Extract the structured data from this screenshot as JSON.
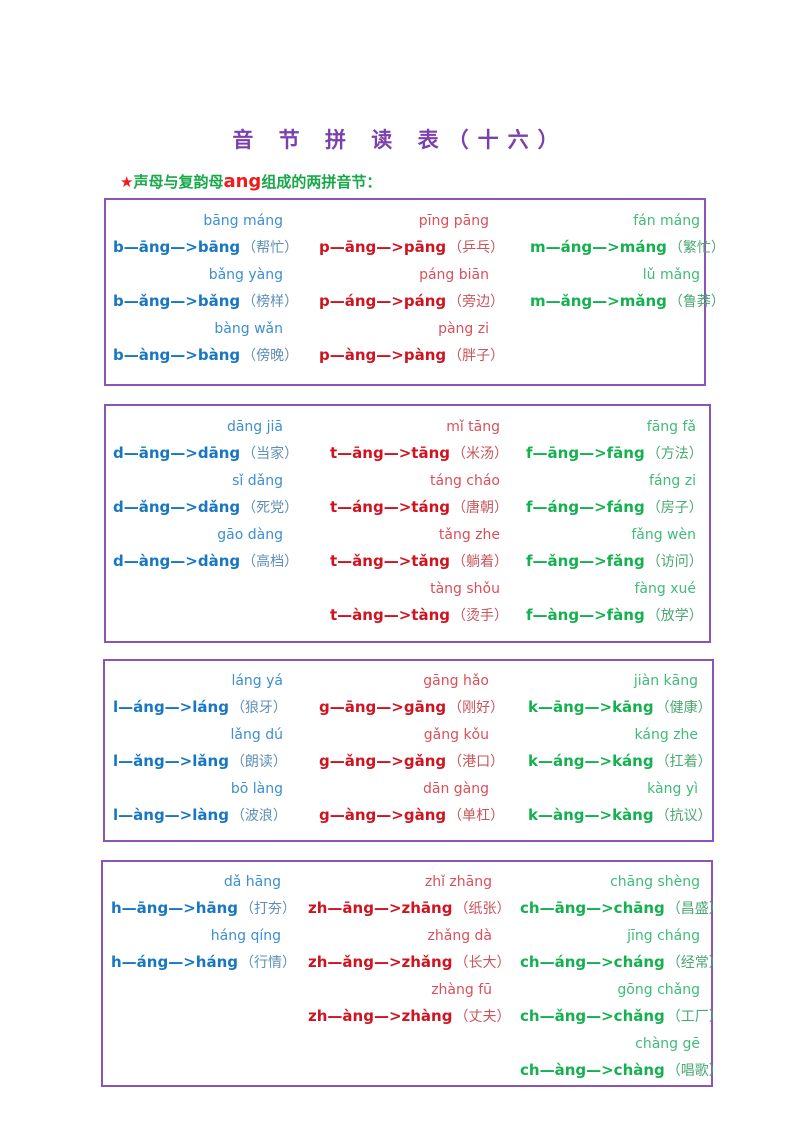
{
  "title": "音 节 拼 读 表（十六）",
  "subtitle": {
    "star": "★",
    "before": "声母与复韵母",
    "highlight": "ang",
    "after": "组成的两拼音节："
  },
  "colors": {
    "title": "#7b3fae",
    "border": "#8a55b5",
    "blue": "#1877c2",
    "red": "#cf1420",
    "green": "#15b050"
  },
  "boxes": [
    {
      "columns": [
        {
          "color": "blue",
          "entries": [
            {
              "pinyin": "bāng máng",
              "formula": "b—āng—>bāng",
              "word": "（帮忙）"
            },
            {
              "pinyin": "bǎng yàng",
              "formula": "b—ǎng—>bǎng",
              "word": "（榜样）"
            },
            {
              "pinyin": "bàng wǎn",
              "formula": "b—àng—>bàng",
              "word": "（傍晚）"
            }
          ]
        },
        {
          "color": "red",
          "entries": [
            {
              "pinyin": "pīng pāng",
              "formula": "p—āng—>pāng",
              "word": "（乒乓）"
            },
            {
              "pinyin": "páng biān",
              "formula": "p—áng—>páng",
              "word": "（旁边）"
            },
            {
              "pinyin": "pàng zi",
              "formula": "p—àng—>pàng",
              "word": "（胖子）"
            }
          ]
        },
        {
          "color": "green",
          "entries": [
            {
              "pinyin": "fán máng",
              "formula": "m—áng—>máng",
              "word": "（繁忙）"
            },
            {
              "pinyin": "lǔ mǎng",
              "formula": "m—ǎng—>mǎng",
              "word": "（鲁莽）"
            }
          ]
        }
      ]
    },
    {
      "columns": [
        {
          "color": "blue",
          "entries": [
            {
              "pinyin": "dāng jiā",
              "formula": "d—āng—>dāng",
              "word": "（当家）"
            },
            {
              "pinyin": "sǐ dǎng",
              "formula": "d—ǎng—>dǎng",
              "word": "（死党）"
            },
            {
              "pinyin": "gāo dàng",
              "formula": "d—àng—>dàng",
              "word": "（高档）"
            }
          ]
        },
        {
          "color": "red",
          "entries": [
            {
              "pinyin": "mǐ tāng",
              "formula": "t—āng—>tāng",
              "word": "（米汤）"
            },
            {
              "pinyin": "táng cháo",
              "formula": "t—áng—>táng",
              "word": "（唐朝）"
            },
            {
              "pinyin": "tǎng zhe",
              "formula": "t—ǎng—>tǎng",
              "word": "（躺着）"
            },
            {
              "pinyin": "tàng shǒu",
              "formula": "t—àng—>tàng",
              "word": "（烫手）"
            }
          ]
        },
        {
          "color": "green",
          "entries": [
            {
              "pinyin": "fāng fǎ",
              "formula": "f—āng—>fāng",
              "word": "（方法）"
            },
            {
              "pinyin": "fáng zi",
              "formula": "f—áng—>fáng",
              "word": "（房子）"
            },
            {
              "pinyin": "fǎng wèn",
              "formula": "f—ǎng—>fǎng",
              "word": "（访问）"
            },
            {
              "pinyin": "fàng xué",
              "formula": "f—àng—>fàng",
              "word": "（放学）"
            }
          ]
        }
      ]
    },
    {
      "columns": [
        {
          "color": "blue",
          "entries": [
            {
              "pinyin": "láng yá",
              "formula": "l—áng—>láng",
              "word": "（狼牙）"
            },
            {
              "pinyin": "lǎng dú",
              "formula": "l—ǎng—>lǎng",
              "word": "（朗读）"
            },
            {
              "pinyin": "bō làng",
              "formula": "l—àng—>làng",
              "word": "（波浪）"
            }
          ]
        },
        {
          "color": "red",
          "entries": [
            {
              "pinyin": "gāng hǎo",
              "formula": "g—āng—>gāng",
              "word": "（刚好）"
            },
            {
              "pinyin": "gǎng kǒu",
              "formula": "g—ǎng—>gǎng",
              "word": "（港口）"
            },
            {
              "pinyin": "dān gàng",
              "formula": "g—àng—>gàng",
              "word": "（单杠）"
            }
          ]
        },
        {
          "color": "green",
          "entries": [
            {
              "pinyin": "jiàn kāng",
              "formula": "k—āng—>kāng",
              "word": "（健康）"
            },
            {
              "pinyin": "káng zhe",
              "formula": "k—áng—>káng",
              "word": "（扛着）"
            },
            {
              "pinyin": "kàng yì",
              "formula": "k—àng—>kàng",
              "word": "（抗议）"
            }
          ]
        }
      ]
    },
    {
      "columns": [
        {
          "color": "blue",
          "entries": [
            {
              "pinyin": "dǎ hāng",
              "formula": "h—āng—>hāng",
              "word": "（打夯）"
            },
            {
              "pinyin": "háng qíng",
              "formula": "h—áng—>háng",
              "word": "（行情）"
            }
          ]
        },
        {
          "color": "red",
          "entries": [
            {
              "pinyin": "zhǐ zhāng",
              "formula": "zh—āng—>zhāng",
              "word": "（纸张）"
            },
            {
              "pinyin": "zhǎng dà",
              "formula": "zh—ǎng—>zhǎng",
              "word": "（长大）"
            },
            {
              "pinyin": "zhàng fū",
              "formula": "zh—àng—>zhàng",
              "word": "（丈夫）"
            }
          ]
        },
        {
          "color": "green",
          "entries": [
            {
              "pinyin": "chāng shèng",
              "formula": "ch—āng—>chāng",
              "word": "（昌盛）"
            },
            {
              "pinyin": "jīng cháng",
              "formula": "ch—áng—>cháng",
              "word": "（经常）"
            },
            {
              "pinyin": "gōng chǎng",
              "formula": "ch—ǎng—>chǎng",
              "word": "（工厂）"
            },
            {
              "pinyin": "chàng gē",
              "formula": "ch—àng—>chàng",
              "word": "（唱歌）"
            }
          ]
        }
      ]
    }
  ]
}
